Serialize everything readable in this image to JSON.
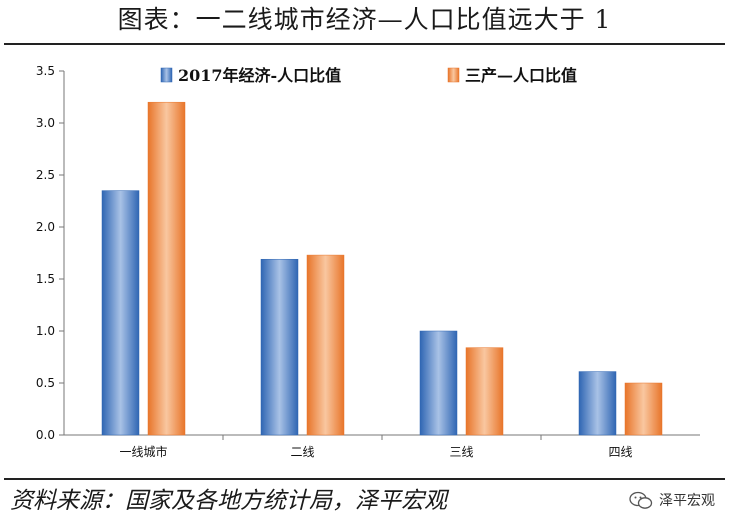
{
  "header": {
    "title": "图表：一二线城市经济—人口比值远大于 1"
  },
  "footer": {
    "source": "资料来源：国家及各地方统计局，泽平宏观",
    "watermark": "泽平宏观"
  },
  "colors": {
    "series1": "#4a7fc1",
    "series2": "#f08a3a"
  },
  "chart_data": {
    "type": "bar",
    "categories": [
      "一线城市",
      "二线",
      "三线",
      "四线"
    ],
    "series": [
      {
        "name": "2017年经济-人口比值",
        "values": [
          2.35,
          1.69,
          1.0,
          0.61
        ]
      },
      {
        "name": "三产—人口比值",
        "values": [
          3.2,
          1.73,
          0.84,
          0.5
        ]
      }
    ],
    "yticks": [
      "0.0",
      "0.5",
      "1.0",
      "1.5",
      "2.0",
      "2.5",
      "3.0",
      "3.5"
    ],
    "ylim": [
      0,
      3.5
    ],
    "legend": "top",
    "grid": false
  }
}
